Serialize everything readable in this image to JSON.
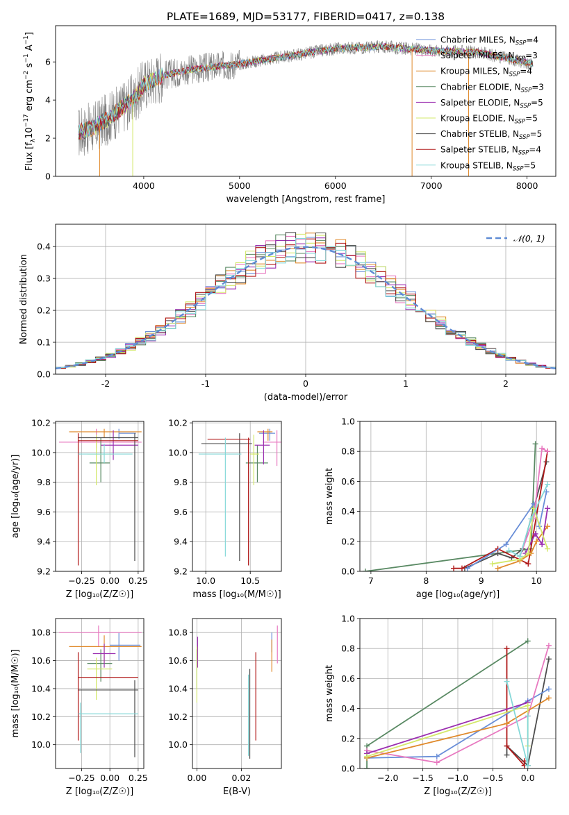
{
  "figure_title": "PLATE=1689, MJD=53177, FIBERID=0417, z=0.138",
  "colors": {
    "cm": "#6a8fd8",
    "sm": "#e879c0",
    "km": "#e08a2c",
    "ce": "#5a8a64",
    "se": "#9b2fb0",
    "ke": "#d3e86a",
    "cs": "#4d4d4d",
    "ss": "#b01818",
    "ks": "#85d8d8",
    "data": "#808080",
    "norm": "#5f8bd4"
  },
  "legend": {
    "spectrum": [
      {
        "key": "cm",
        "label": "Chabrier MILES, N",
        "sub": "SSP",
        "suffix": "=4"
      },
      {
        "key": "sm",
        "label": "Salpeter MILES, N",
        "sub": "SSP",
        "suffix": "=3"
      },
      {
        "key": "km",
        "label": "Kroupa MILES, N",
        "sub": "SSP",
        "suffix": "=4"
      },
      {
        "key": "ce",
        "label": "Chabrier ELODIE, N",
        "sub": "SSP",
        "suffix": "=3"
      },
      {
        "key": "se",
        "label": "Salpeter ELODIE, N",
        "sub": "SSP",
        "suffix": "=5"
      },
      {
        "key": "ke",
        "label": "Kroupa ELODIE, N",
        "sub": "SSP",
        "suffix": "=5"
      },
      {
        "key": "cs",
        "label": "Chabrier STELIB, N",
        "sub": "SSP",
        "suffix": "=5"
      },
      {
        "key": "ss",
        "label": "Salpeter STELIB, N",
        "sub": "SSP",
        "suffix": "=4"
      },
      {
        "key": "ks",
        "label": "Kroupa STELIB, N",
        "sub": "SSP",
        "suffix": "=5"
      }
    ],
    "histogram": "𝒩(0, 1)"
  },
  "chart_data": [
    {
      "type": "line",
      "id": "spectrum",
      "xlabel": "wavelength [Angstrom, rest frame]",
      "ylabel": "Flux [f_λ 10^-17 erg cm^-2 s^-1 A^-1]",
      "xlim": [
        3080,
        8300
      ],
      "ylim": [
        0,
        7.9
      ],
      "xticks": [
        4000,
        5000,
        6000,
        7000,
        8000
      ],
      "yticks": [
        0,
        2,
        4,
        6
      ],
      "continuum_x": [
        3320,
        3500,
        3700,
        3900,
        4000,
        4200,
        4500,
        5000,
        5500,
        6000,
        6500,
        7000,
        7500,
        8060
      ],
      "continuum_y": [
        2.3,
        2.6,
        3.3,
        4.1,
        4.8,
        5.3,
        5.6,
        5.9,
        6.3,
        6.7,
        6.8,
        6.6,
        6.5,
        5.9
      ]
    },
    {
      "type": "bar",
      "id": "residuals",
      "xlabel": "(data-model)/error",
      "ylabel": "Normed distribution",
      "xlim": [
        -2.5,
        2.5
      ],
      "ylim": [
        0,
        0.47
      ],
      "xticks": [
        -2,
        -1,
        0,
        1,
        2
      ],
      "yticks": [
        0.0,
        0.1,
        0.2,
        0.3,
        0.4
      ],
      "bin_width": 0.1,
      "reference": "standard normal"
    },
    {
      "type": "scatter",
      "id": "age-vs-Z",
      "xlabel": "Z [log₁₀(Z/Z☉)]",
      "ylabel": "age  [log₁₀(age/yr)]",
      "xlim": [
        -0.48,
        0.3
      ],
      "ylim": [
        9.2,
        10.21
      ],
      "xticks": [
        -0.25,
        0.0,
        0.25
      ],
      "xticklabels": [
        "−0.25",
        "0.00",
        "0.25"
      ],
      "yticks": [
        9.2,
        9.4,
        9.6,
        9.8,
        10.0,
        10.2
      ],
      "points": [
        {
          "key": "cm",
          "x": 0.08,
          "xe": [
            0.08,
            0.23
          ],
          "y": 10.13,
          "ye": [
            10.09,
            10.16
          ]
        },
        {
          "key": "sm",
          "x": -0.12,
          "xe": [
            -0.45,
            0.28
          ],
          "y": 10.07,
          "ye": [
            10.03,
            10.16
          ]
        },
        {
          "key": "km",
          "x": -0.05,
          "xe": [
            -0.36,
            0.28
          ],
          "y": 10.14,
          "ye": [
            10.1,
            10.16
          ]
        },
        {
          "key": "ce",
          "x": -0.08,
          "xe": [
            -0.18,
            0.0
          ],
          "y": 9.93,
          "ye": [
            9.8,
            10.1
          ]
        },
        {
          "key": "se",
          "x": 0.03,
          "xe": [
            -0.08,
            0.25
          ],
          "y": 10.05,
          "ye": [
            9.95,
            10.15
          ]
        },
        {
          "key": "ke",
          "x": -0.12,
          "xe": [
            -0.2,
            0.03
          ],
          "y": 9.99,
          "ye": [
            9.78,
            10.12
          ]
        },
        {
          "key": "cs",
          "x": 0.22,
          "xe": [
            -0.28,
            0.25
          ],
          "y": 10.1,
          "ye": [
            9.27,
            10.13
          ]
        },
        {
          "key": "ss",
          "x": -0.28,
          "xe": [
            -0.28,
            0.25
          ],
          "y": 10.08,
          "ye": [
            9.24,
            10.13
          ]
        },
        {
          "key": "ks",
          "x": -0.05,
          "xe": [
            -0.28,
            0.2
          ],
          "y": 9.99,
          "ye": [
            9.93,
            10.06
          ]
        }
      ]
    },
    {
      "type": "scatter",
      "id": "age-vs-mass",
      "xlabel": "mass [log₁₀(M/M☉)]",
      "ylabel": "",
      "xlim": [
        9.85,
        10.85
      ],
      "ylim": [
        9.2,
        10.21
      ],
      "xticks": [
        10.0,
        10.5
      ],
      "yticks": [
        9.2,
        9.4,
        9.6,
        9.8,
        10.0,
        10.2
      ],
      "points": [
        {
          "key": "cm",
          "x": 10.72,
          "xe": [
            10.6,
            10.78
          ],
          "y": 10.13,
          "ye": [
            10.08,
            10.16
          ]
        },
        {
          "key": "sm",
          "x": 10.8,
          "xe": [
            10.64,
            10.85
          ],
          "y": 10.07,
          "ye": [
            9.91,
            10.15
          ]
        },
        {
          "key": "km",
          "x": 10.7,
          "xe": [
            10.58,
            10.75
          ],
          "y": 10.14,
          "ye": [
            10.08,
            10.16
          ]
        },
        {
          "key": "ce",
          "x": 10.58,
          "xe": [
            10.45,
            10.7
          ],
          "y": 9.93,
          "ye": [
            9.8,
            10.05
          ]
        },
        {
          "key": "se",
          "x": 10.65,
          "xe": [
            10.55,
            10.72
          ],
          "y": 10.05,
          "ye": [
            9.92,
            10.15
          ]
        },
        {
          "key": "ke",
          "x": 10.54,
          "xe": [
            10.5,
            10.6
          ],
          "y": 9.99,
          "ye": [
            9.78,
            10.12
          ]
        },
        {
          "key": "cs",
          "x": 10.38,
          "xe": [
            9.95,
            10.52
          ],
          "y": 10.06,
          "ye": [
            9.27,
            10.13
          ]
        },
        {
          "key": "ss",
          "x": 10.48,
          "xe": [
            10.02,
            10.5
          ],
          "y": 10.09,
          "ye": [
            9.24,
            10.1
          ]
        },
        {
          "key": "ks",
          "x": 10.22,
          "xe": [
            9.92,
            10.4
          ],
          "y": 9.99,
          "ye": [
            9.3,
            10.1
          ]
        }
      ]
    },
    {
      "type": "line",
      "id": "mass-weight-vs-age",
      "xlabel": "age  [log₁₀(age/yr)]",
      "ylabel": "mass weight",
      "xlim": [
        6.8,
        10.35
      ],
      "ylim": [
        0,
        1.0
      ],
      "xticks": [
        7,
        8,
        9,
        10
      ],
      "yticks": [
        0.0,
        0.2,
        0.4,
        0.6,
        0.8,
        1.0
      ],
      "series": [
        {
          "key": "ce",
          "x": [
            6.9,
            9.9,
            9.98
          ],
          "y": [
            0.0,
            0.15,
            0.85
          ]
        },
        {
          "key": "cs",
          "x": [
            8.7,
            9.3,
            9.55,
            9.75,
            10.18
          ],
          "y": [
            0.02,
            0.12,
            0.09,
            0.15,
            0.73
          ]
        },
        {
          "key": "ss",
          "x": [
            8.5,
            8.65,
            9.3,
            9.85,
            10.2
          ],
          "y": [
            0.02,
            0.02,
            0.15,
            0.05,
            0.8
          ]
        },
        {
          "key": "cm",
          "x": [
            8.75,
            9.45,
            9.95,
            10.05,
            10.18
          ],
          "y": [
            0.02,
            0.18,
            0.45,
            0.3,
            0.53
          ]
        },
        {
          "key": "sm",
          "x": [
            9.7,
            9.95,
            10.1,
            10.2
          ],
          "y": [
            0.1,
            0.35,
            0.82,
            0.8
          ]
        },
        {
          "key": "km",
          "x": [
            9.3,
            9.7,
            9.9,
            10.0,
            10.2
          ],
          "y": [
            0.02,
            0.07,
            0.12,
            0.2,
            0.3
          ]
        },
        {
          "key": "se",
          "x": [
            9.8,
            9.98,
            10.1,
            10.2
          ],
          "y": [
            0.12,
            0.25,
            0.18,
            0.42
          ]
        },
        {
          "key": "ke",
          "x": [
            9.2,
            9.7,
            9.85,
            9.95,
            10.2
          ],
          "y": [
            0.05,
            0.08,
            0.12,
            0.42,
            0.15
          ]
        },
        {
          "key": "ks",
          "x": [
            9.5,
            9.7,
            9.9,
            10.2
          ],
          "y": [
            0.14,
            0.1,
            0.35,
            0.58
          ]
        }
      ]
    },
    {
      "type": "scatter",
      "id": "mass-vs-Z",
      "xlabel": "Z [log₁₀(Z/Z☉)]",
      "ylabel": "mass [log₁₀(M/M☉)]",
      "xlim": [
        -0.48,
        0.3
      ],
      "ylim": [
        9.83,
        10.9
      ],
      "xticks": [
        -0.25,
        0.0,
        0.25
      ],
      "xticklabels": [
        "−0.25",
        "0.00",
        "0.25"
      ],
      "yticks": [
        10.0,
        10.2,
        10.4,
        10.6,
        10.8
      ],
      "points": [
        {
          "key": "cm",
          "x": 0.08,
          "xe": [
            0.0,
            0.27
          ],
          "y": 10.71,
          "ye": [
            10.6,
            10.8
          ]
        },
        {
          "key": "sm",
          "x": -0.1,
          "xe": [
            -0.45,
            0.28
          ],
          "y": 10.8,
          "ye": [
            10.7,
            10.85
          ]
        },
        {
          "key": "km",
          "x": -0.05,
          "xe": [
            -0.36,
            0.28
          ],
          "y": 10.7,
          "ye": [
            10.58,
            10.78
          ]
        },
        {
          "key": "ce",
          "x": -0.08,
          "xe": [
            -0.2,
            0.02
          ],
          "y": 10.58,
          "ye": [
            10.45,
            10.68
          ]
        },
        {
          "key": "se",
          "x": -0.05,
          "xe": [
            -0.15,
            0.05
          ],
          "y": 10.65,
          "ye": [
            10.55,
            10.72
          ]
        },
        {
          "key": "ke",
          "x": -0.12,
          "xe": [
            -0.2,
            0.02
          ],
          "y": 10.54,
          "ye": [
            10.32,
            10.62
          ]
        },
        {
          "key": "cs",
          "x": 0.22,
          "xe": [
            -0.28,
            0.25
          ],
          "y": 10.39,
          "ye": [
            9.91,
            10.46
          ]
        },
        {
          "key": "ss",
          "x": -0.28,
          "xe": [
            -0.28,
            0.25
          ],
          "y": 10.48,
          "ye": [
            10.03,
            10.66
          ]
        },
        {
          "key": "ks",
          "x": -0.26,
          "xe": [
            -0.28,
            0.25
          ],
          "y": 10.22,
          "ye": [
            9.94,
            10.3
          ]
        }
      ]
    },
    {
      "type": "scatter",
      "id": "mass-vs-ebv",
      "xlabel": "E(B-V)",
      "ylabel": "",
      "xlim": [
        -0.002,
        0.038
      ],
      "ylim": [
        9.83,
        10.9
      ],
      "xticks": [
        0.0,
        0.02
      ],
      "xticklabels": [
        "0.00",
        "0.02"
      ],
      "yticks": [
        10.0,
        10.2,
        10.4,
        10.6,
        10.8
      ],
      "points": [
        {
          "key": "cm",
          "x": 0.0337,
          "y": 10.72,
          "ye": [
            10.66,
            10.8
          ]
        },
        {
          "key": "sm",
          "x": 0.0362,
          "y": 10.8,
          "ye": [
            10.58,
            10.85
          ]
        },
        {
          "key": "km",
          "x": 0.0337,
          "y": 10.7,
          "ye": [
            10.52,
            10.75
          ]
        },
        {
          "key": "ce",
          "x": 0.0,
          "y": 10.58,
          "ye": [
            10.4,
            10.68
          ]
        },
        {
          "key": "se",
          "x": 0.0003,
          "y": 10.65,
          "ye": [
            10.55,
            10.77
          ]
        },
        {
          "key": "ke",
          "x": 0.0,
          "y": 10.54,
          "ye": [
            10.3,
            10.7
          ]
        },
        {
          "key": "cs",
          "x": 0.0238,
          "y": 10.39,
          "ye": [
            9.9,
            10.54
          ]
        },
        {
          "key": "ss",
          "x": 0.0265,
          "y": 10.48,
          "ye": [
            10.03,
            10.66
          ]
        },
        {
          "key": "ks",
          "x": 0.0232,
          "y": 10.22,
          "ye": [
            9.92,
            10.5
          ]
        }
      ]
    },
    {
      "type": "line",
      "id": "mass-weight-vs-Z",
      "xlabel": "Z [log₁₀(Z/Z☉)]",
      "ylabel": "mass weight",
      "xlim": [
        -2.4,
        0.4
      ],
      "ylim": [
        0,
        1.0
      ],
      "xticks": [
        -2.0,
        -1.5,
        -1.0,
        -0.5,
        0.0
      ],
      "xticklabels": [
        "−2.0",
        "−1.5",
        "−1.0",
        "−0.5",
        "0.0"
      ],
      "yticks": [
        0.0,
        0.2,
        0.4,
        0.6,
        0.8,
        1.0
      ],
      "series": [
        {
          "key": "ce",
          "x": [
            -2.3,
            -2.3,
            0.0
          ],
          "y": [
            0.0,
            0.15,
            0.85
          ]
        },
        {
          "key": "cs",
          "x": [
            -0.3,
            -0.3,
            0.0,
            0.3
          ],
          "y": [
            0.09,
            0.15,
            0.02,
            0.73
          ]
        },
        {
          "key": "ss",
          "x": [
            -0.3,
            -0.3,
            -0.05,
            -0.05
          ],
          "y": [
            0.8,
            0.15,
            0.02,
            0.05
          ]
        },
        {
          "key": "cm",
          "x": [
            -2.3,
            -1.3,
            0.0,
            0.3
          ],
          "y": [
            0.07,
            0.08,
            0.45,
            0.53
          ]
        },
        {
          "key": "sm",
          "x": [
            -2.3,
            -1.3,
            0.0,
            0.3
          ],
          "y": [
            0.12,
            0.04,
            0.35,
            0.82
          ]
        },
        {
          "key": "km",
          "x": [
            -2.3,
            -0.3,
            0.3
          ],
          "y": [
            0.07,
            0.3,
            0.47
          ]
        },
        {
          "key": "se",
          "x": [
            -2.3,
            0.0
          ],
          "y": [
            0.1,
            0.44
          ]
        },
        {
          "key": "ke",
          "x": [
            -2.3,
            0.0,
            0.0
          ],
          "y": [
            0.08,
            0.42,
            0.15
          ]
        },
        {
          "key": "ks",
          "x": [
            -0.3,
            0.0,
            0.0
          ],
          "y": [
            0.58,
            0.02,
            0.35
          ]
        }
      ]
    }
  ]
}
